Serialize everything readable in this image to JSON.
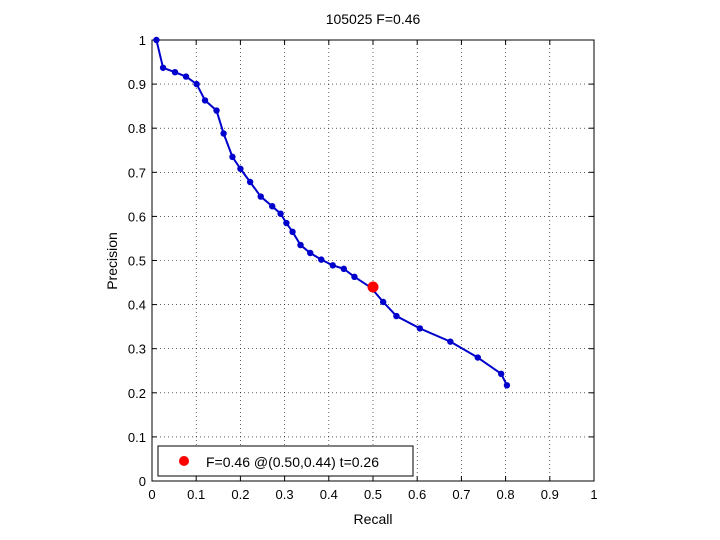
{
  "chart_data": {
    "type": "line",
    "title": "105025 F=0.46",
    "xlabel": "Recall",
    "ylabel": "Precision",
    "xlim": [
      0,
      1
    ],
    "ylim": [
      0,
      1
    ],
    "grid": true,
    "legend_position": "bottom-left",
    "xticks": [
      0,
      0.1,
      0.2,
      0.3,
      0.4,
      0.5,
      0.6,
      0.7,
      0.8,
      0.9,
      1
    ],
    "yticks": [
      0,
      0.1,
      0.2,
      0.3,
      0.4,
      0.5,
      0.6,
      0.7,
      0.8,
      0.9,
      1
    ],
    "xtick_labels": [
      "0",
      "0.1",
      "0.2",
      "0.3",
      "0.4",
      "0.5",
      "0.6",
      "0.7",
      "0.8",
      "0.9",
      "1"
    ],
    "ytick_labels": [
      "0",
      "0.1",
      "0.2",
      "0.3",
      "0.4",
      "0.5",
      "0.6",
      "0.7",
      "0.8",
      "0.9",
      "1"
    ],
    "series": [
      {
        "color": "#0000cc",
        "x": [
          0.01,
          0.025,
          0.052,
          0.077,
          0.101,
          0.12,
          0.146,
          0.162,
          0.182,
          0.2,
          0.222,
          0.246,
          0.272,
          0.291,
          0.304,
          0.318,
          0.336,
          0.358,
          0.383,
          0.409,
          0.434,
          0.458,
          0.496,
          0.523,
          0.553,
          0.606,
          0.675,
          0.737,
          0.79,
          0.803
        ],
        "y": [
          1.0,
          0.937,
          0.927,
          0.917,
          0.9,
          0.863,
          0.84,
          0.788,
          0.735,
          0.708,
          0.678,
          0.645,
          0.623,
          0.606,
          0.585,
          0.565,
          0.535,
          0.517,
          0.502,
          0.489,
          0.481,
          0.463,
          0.438,
          0.406,
          0.374,
          0.346,
          0.316,
          0.28,
          0.243,
          0.217
        ]
      }
    ],
    "highlight_point": {
      "x": 0.5,
      "y": 0.44,
      "color": "#ff0000",
      "legend_label": "F=0.46 @(0.50,0.44) t=0.26"
    }
  }
}
